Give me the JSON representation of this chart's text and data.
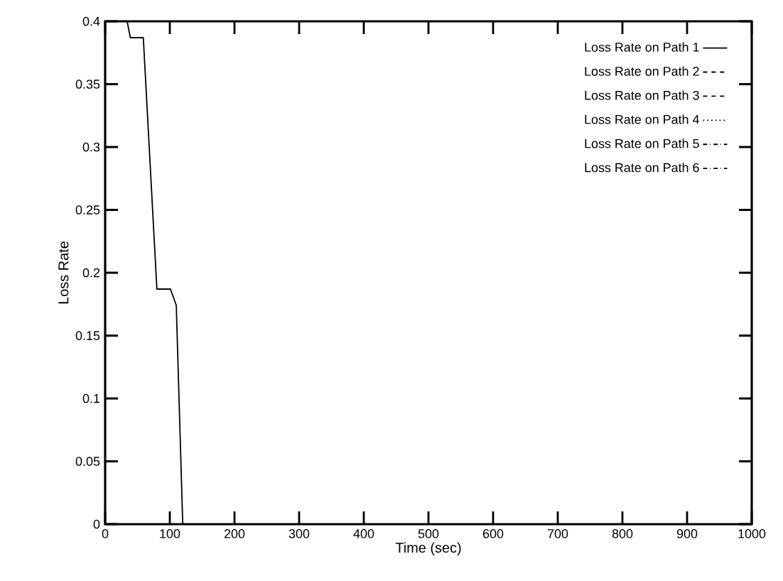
{
  "chart_data": {
    "type": "line",
    "xlabel": "Time (sec)",
    "ylabel": "Loss Rate",
    "xlim": [
      0,
      1000
    ],
    "ylim": [
      0,
      0.4
    ],
    "xticks": [
      0,
      100,
      200,
      300,
      400,
      500,
      600,
      700,
      800,
      900,
      1000
    ],
    "yticks": [
      0,
      0.05,
      0.1,
      0.15,
      0.2,
      0.25,
      0.3,
      0.35,
      0.4
    ],
    "grid": false,
    "legend": "top right",
    "marker": "none",
    "series": [
      {
        "name": "Loss Rate on Path 1",
        "color": "#000000",
        "line_style": "solid",
        "x": [
          34,
          39,
          59,
          80,
          101,
          110,
          120,
          1000
        ],
        "values": [
          0.4,
          0.387,
          0.387,
          0.187,
          0.187,
          0.174,
          0,
          0
        ]
      },
      {
        "name": "Loss Rate on Path 2",
        "color": "#000000",
        "line_style": "dashed"
      },
      {
        "name": "Loss Rate on Path 3",
        "color": "#000000",
        "line_style": "dashed"
      },
      {
        "name": "Loss Rate on Path 4",
        "color": "#000000",
        "line_style": "dotted"
      },
      {
        "name": "Loss Rate on Path 5",
        "color": "#000000",
        "line_style": "dashdotted"
      },
      {
        "name": "Loss Rate on Path 6",
        "color": "#000000",
        "line_style": "dashdotted"
      }
    ]
  }
}
